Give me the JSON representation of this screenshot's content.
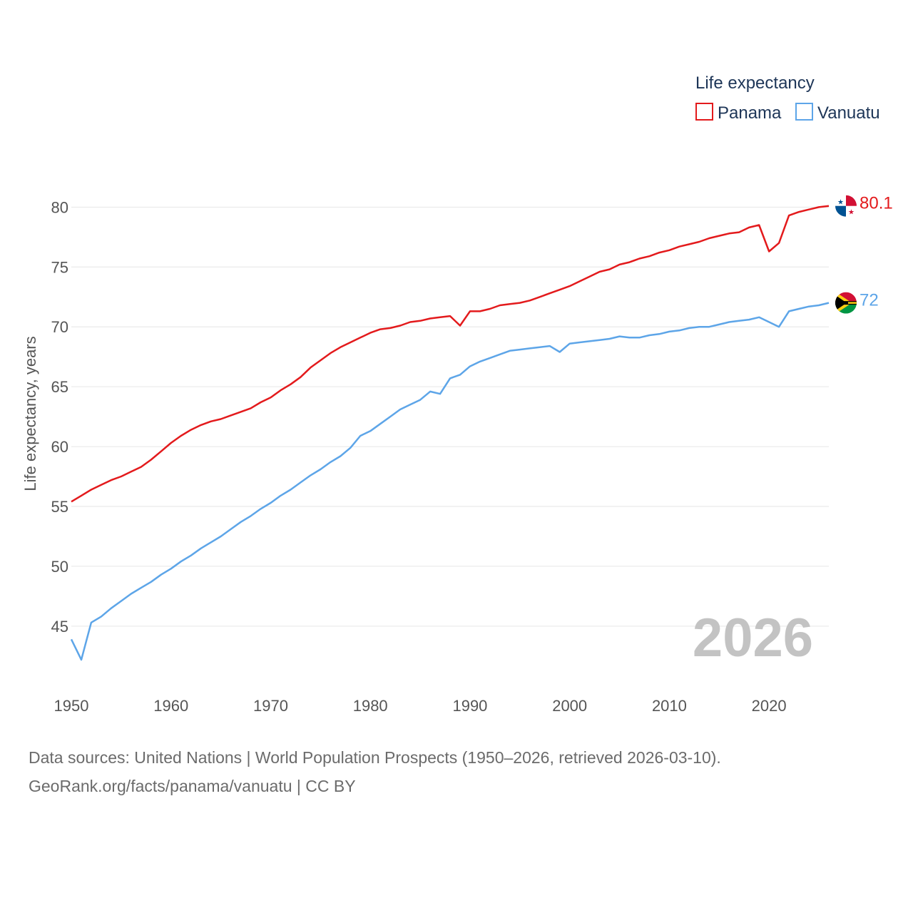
{
  "chart_data": {
    "type": "line",
    "title": "",
    "ylabel": "Life expectancy, years",
    "xlabel": "",
    "xlim": [
      1950,
      2026
    ],
    "ylim": [
      41,
      83
    ],
    "yticks": [
      45,
      50,
      55,
      60,
      65,
      70,
      75,
      80
    ],
    "xticks": [
      1950,
      1960,
      1970,
      1980,
      1990,
      2000,
      2010,
      2020
    ],
    "ytick_labels": [
      "45",
      "50",
      "55",
      "60",
      "65",
      "70",
      "75",
      "80"
    ],
    "xtick_labels": [
      "1950",
      "1960",
      "1970",
      "1980",
      "1990",
      "2000",
      "2010",
      "2020"
    ],
    "legend_title": "Life expectancy",
    "legend_position": "top-right",
    "current_year_label": "2026",
    "x": [
      1950,
      1951,
      1952,
      1953,
      1954,
      1955,
      1956,
      1957,
      1958,
      1959,
      1960,
      1961,
      1962,
      1963,
      1964,
      1965,
      1966,
      1967,
      1968,
      1969,
      1970,
      1971,
      1972,
      1973,
      1974,
      1975,
      1976,
      1977,
      1978,
      1979,
      1980,
      1981,
      1982,
      1983,
      1984,
      1985,
      1986,
      1987,
      1988,
      1989,
      1990,
      1991,
      1992,
      1993,
      1994,
      1995,
      1996,
      1997,
      1998,
      1999,
      2000,
      2001,
      2002,
      2003,
      2004,
      2005,
      2006,
      2007,
      2008,
      2009,
      2010,
      2011,
      2012,
      2013,
      2014,
      2015,
      2016,
      2017,
      2018,
      2019,
      2020,
      2021,
      2022,
      2023,
      2024,
      2025,
      2026
    ],
    "series": [
      {
        "name": "Panama",
        "color": "#e31a1c",
        "end_label": "80.1",
        "values": [
          55.4,
          55.9,
          56.4,
          56.8,
          57.2,
          57.5,
          57.9,
          58.3,
          58.9,
          59.6,
          60.3,
          60.9,
          61.4,
          61.8,
          62.1,
          62.3,
          62.6,
          62.9,
          63.2,
          63.7,
          64.1,
          64.7,
          65.2,
          65.8,
          66.6,
          67.2,
          67.8,
          68.3,
          68.7,
          69.1,
          69.5,
          69.8,
          69.9,
          70.1,
          70.4,
          70.5,
          70.7,
          70.8,
          70.9,
          70.1,
          71.3,
          71.3,
          71.5,
          71.8,
          71.9,
          72.0,
          72.2,
          72.5,
          72.8,
          73.1,
          73.4,
          73.8,
          74.2,
          74.6,
          74.8,
          75.2,
          75.4,
          75.7,
          75.9,
          76.2,
          76.4,
          76.7,
          76.9,
          77.1,
          77.4,
          77.6,
          77.8,
          77.9,
          78.3,
          78.5,
          76.3,
          77.0,
          79.3,
          79.6,
          79.8,
          80.0,
          80.1
        ]
      },
      {
        "name": "Vanuatu",
        "color": "#5da5e8",
        "end_label": "72",
        "values": [
          43.9,
          42.2,
          45.3,
          45.8,
          46.5,
          47.1,
          47.7,
          48.2,
          48.7,
          49.3,
          49.8,
          50.4,
          50.9,
          51.5,
          52.0,
          52.5,
          53.1,
          53.7,
          54.2,
          54.8,
          55.3,
          55.9,
          56.4,
          57.0,
          57.6,
          58.1,
          58.7,
          59.2,
          59.9,
          60.9,
          61.3,
          61.9,
          62.5,
          63.1,
          63.5,
          63.9,
          64.6,
          64.4,
          65.7,
          66.0,
          66.7,
          67.1,
          67.4,
          67.7,
          68.0,
          68.1,
          68.2,
          68.3,
          68.4,
          67.9,
          68.6,
          68.7,
          68.8,
          68.9,
          69.0,
          69.2,
          69.1,
          69.1,
          69.3,
          69.4,
          69.6,
          69.7,
          69.9,
          70.0,
          70.0,
          70.2,
          70.4,
          70.5,
          70.6,
          70.8,
          70.4,
          70.0,
          71.3,
          71.5,
          71.7,
          71.8,
          72.0
        ]
      }
    ]
  },
  "footer": {
    "line1": "Data sources: United Nations | World Population Prospects (1950–2026, retrieved 2026-03-10).",
    "line2": "GeoRank.org/facts/panama/vanuatu | CC BY"
  },
  "flags": {
    "panama": [
      "#ffffff",
      "#d21034",
      "#005293"
    ],
    "vanuatu": [
      "#d21034",
      "#009543",
      "#000000",
      "#fdce12"
    ]
  },
  "icons": {
    "panama_flag": "panama-flag-icon",
    "vanuatu_flag": "vanuatu-flag-icon"
  }
}
